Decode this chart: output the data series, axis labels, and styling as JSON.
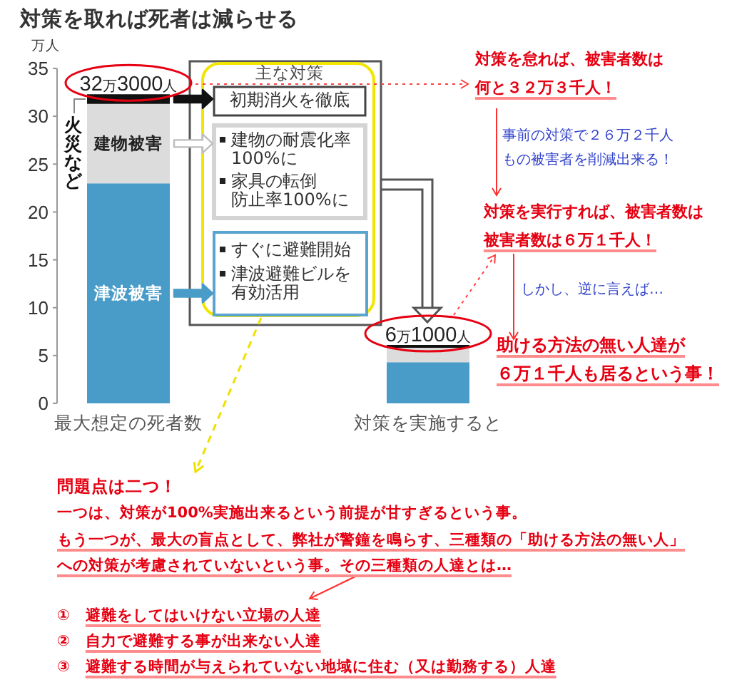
{
  "chart_data": {
    "type": "bar",
    "title": "対策を取れば死者は減らせる",
    "ylabel": "万人",
    "categories": [
      "最大想定の死者数",
      "対策を実施すると"
    ],
    "stacked": true,
    "series": [
      {
        "name": "津波被害",
        "color": "#4a9cc8",
        "values": [
          23,
          4.3
        ]
      },
      {
        "name": "建物被害",
        "color": "#dcdcdc",
        "values": [
          8.3,
          1.5
        ]
      },
      {
        "name": "火災など",
        "color": "#111111",
        "values": [
          1,
          0.3
        ]
      }
    ],
    "totals": [
      "32万3000人",
      "6万1000人"
    ],
    "ylim": [
      0,
      35
    ],
    "yticks": [
      0,
      5,
      10,
      15,
      20,
      25,
      30,
      35
    ],
    "annotations": [
      "主な対策",
      "初期消火を徹底",
      "建物の耐震化率",
      "100%に",
      "家具の転倒",
      "防止率100%に",
      "すぐに避難開始",
      "津波避難ビルを",
      "有効活用",
      "対策を怠れば、被害者数は",
      "何と３２万３千人！",
      "事前の対策で２６万２千人",
      "もの被害者を削減出来る！",
      "対策を実行すれば、被害者数は",
      "被害者数は６万１千人！",
      "しかし、逆に言えば…",
      "助ける方法の無い人達が",
      "６万１千人も居るという事！",
      "問題点は二つ！",
      "一つは、対策が100%実施出来るという前提が甘すぎるという事。",
      "もう一つが、最大の盲点として、弊社が警鐘を鳴らす、三種類の「助ける方法の無い人」",
      "への対策が考慮されていないという事。その三種類の人達とは…",
      "①　避難をしてはいけない立場の人達",
      "②　自力で避難する事が出来ない人達",
      "③　避難する時間が与えられていない地域に住む（又は勤務する）人達"
    ]
  }
}
